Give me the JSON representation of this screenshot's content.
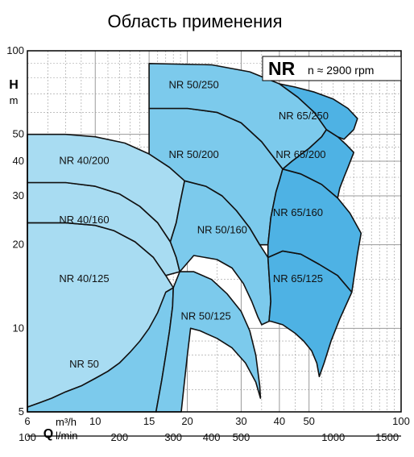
{
  "title": "Область применения",
  "chart_data": {
    "type": "area",
    "title": "Область применения",
    "legend_box": {
      "series": "NR",
      "speed": "n ≈ 2900 rpm"
    },
    "y_axis": {
      "letter": "H",
      "unit": "m",
      "scale": "log",
      "range": [
        5,
        100
      ],
      "ticks": [
        5,
        10,
        20,
        30,
        40,
        50,
        100
      ]
    },
    "x_axis_top": {
      "letter": "Q",
      "unit": "m³/h",
      "scale": "log",
      "range": [
        6,
        100
      ],
      "ticks": [
        6,
        10,
        15,
        20,
        30,
        40,
        50,
        100
      ]
    },
    "x_axis_bottom": {
      "unit": "l/min",
      "scale": "log",
      "ticks": [
        100,
        200,
        300,
        400,
        500,
        1000,
        1500
      ]
    },
    "grid": true,
    "colors": {
      "NR 40": "#a8dcf2",
      "NR 50": "#7ccaec",
      "NR 65": "#4eb2e4",
      "outline": "#111111",
      "highlight_label": "#d0202a"
    },
    "zones": [
      {
        "name": "NR 40/125",
        "family": "NR 40",
        "polygon": [
          [
            6,
            24
          ],
          [
            8,
            24
          ],
          [
            10,
            23.5
          ],
          [
            11.5,
            22.5
          ],
          [
            13.5,
            20.5
          ],
          [
            15.5,
            18
          ],
          [
            17,
            15.5
          ],
          [
            18,
            14
          ],
          [
            17,
            10.4
          ],
          [
            15.5,
            9
          ],
          [
            13,
            8.2
          ],
          [
            12,
            7.5
          ],
          [
            11,
            7
          ],
          [
            10,
            6.6
          ],
          [
            9,
            6.2
          ],
          [
            8,
            5.9
          ],
          [
            7.2,
            5.6
          ],
          [
            6.6,
            5.4
          ],
          [
            6,
            5.2
          ]
        ],
        "label_at": [
          9.2,
          15
        ]
      },
      {
        "name": "NR 50",
        "family": "NR 50",
        "highlight": true,
        "polygon": [
          [
            6,
            5.2
          ],
          [
            6.6,
            5.4
          ],
          [
            7.2,
            5.6
          ],
          [
            8,
            5.9
          ],
          [
            9,
            6.2
          ],
          [
            10,
            6.6
          ],
          [
            11,
            7
          ],
          [
            12,
            7.5
          ],
          [
            13,
            8.2
          ],
          [
            14,
            9
          ],
          [
            15,
            10
          ],
          [
            16,
            11.4
          ],
          [
            17,
            13.5
          ],
          [
            18,
            14
          ],
          [
            17.9,
            12
          ],
          [
            17.5,
            9.8
          ],
          [
            17,
            8
          ],
          [
            16.5,
            6.5
          ],
          [
            15.8,
            5
          ],
          [
            6,
            5
          ]
        ],
        "label_at": [
          9.2,
          7.4
        ]
      },
      {
        "name": "NR 40/160",
        "family": "NR 40",
        "polygon": [
          [
            6,
            33.5
          ],
          [
            8,
            33.5
          ],
          [
            10,
            32.5
          ],
          [
            12,
            30.5
          ],
          [
            14,
            27.5
          ],
          [
            16,
            24
          ],
          [
            17.6,
            20.5
          ],
          [
            18.4,
            18
          ],
          [
            18.9,
            16
          ],
          [
            17,
            15.5
          ],
          [
            15.5,
            18
          ],
          [
            13.5,
            20.5
          ],
          [
            11.5,
            22.5
          ],
          [
            10,
            23.5
          ],
          [
            8,
            24
          ],
          [
            6,
            24
          ]
        ],
        "label_at": [
          9.2,
          24.5
        ]
      },
      {
        "name": "NR 40/200",
        "family": "NR 40",
        "polygon": [
          [
            6,
            50
          ],
          [
            8,
            50
          ],
          [
            10,
            49
          ],
          [
            12.5,
            46.5
          ],
          [
            15,
            42.5
          ],
          [
            17.5,
            38
          ],
          [
            19.6,
            34
          ],
          [
            18.9,
            28
          ],
          [
            18.4,
            24
          ],
          [
            17.6,
            20.5
          ],
          [
            16,
            24
          ],
          [
            14,
            27.5
          ],
          [
            12,
            30.5
          ],
          [
            10,
            32.5
          ],
          [
            8,
            33.5
          ],
          [
            6,
            33.5
          ]
        ],
        "label_at": [
          9.2,
          40
        ]
      },
      {
        "name": "NR 50/125",
        "family": "NR 50",
        "polygon": [
          [
            18.9,
            16
          ],
          [
            21,
            16
          ],
          [
            24,
            15
          ],
          [
            27,
            13.3
          ],
          [
            30,
            11.5
          ],
          [
            32,
            9.8
          ],
          [
            33.5,
            8
          ],
          [
            34.5,
            6.2
          ],
          [
            34.7,
            5.6
          ],
          [
            33.5,
            6.4
          ],
          [
            31,
            7.5
          ],
          [
            28,
            8.5
          ],
          [
            25,
            9.2
          ],
          [
            22,
            9.8
          ],
          [
            20.5,
            10
          ],
          [
            20,
            8
          ],
          [
            19.6,
            6.5
          ],
          [
            19.1,
            5
          ],
          [
            15.8,
            5
          ],
          [
            16.5,
            6.5
          ],
          [
            17,
            8
          ],
          [
            17.5,
            9.8
          ],
          [
            17.9,
            12
          ],
          [
            18,
            14
          ]
        ],
        "label_at": [
          23,
          11
        ]
      },
      {
        "name": "NR 50/160",
        "family": "NR 50",
        "polygon": [
          [
            19.6,
            34
          ],
          [
            23,
            32.5
          ],
          [
            26,
            30
          ],
          [
            29,
            26.5
          ],
          [
            32,
            23
          ],
          [
            34.5,
            20
          ],
          [
            36.7,
            18
          ],
          [
            37.5,
            12.5
          ],
          [
            37,
            10.6
          ],
          [
            35,
            10.3
          ],
          [
            34,
            11
          ],
          [
            32.5,
            12.5
          ],
          [
            30.5,
            14.5
          ],
          [
            28,
            16.5
          ],
          [
            25,
            17.7
          ],
          [
            21,
            18.3
          ],
          [
            18.9,
            16
          ],
          [
            18.4,
            18
          ],
          [
            17.6,
            20.5
          ],
          [
            18.4,
            24
          ],
          [
            18.9,
            28
          ]
        ],
        "label_at": [
          26,
          22.5
        ]
      },
      {
        "name": "NR 50/200",
        "family": "NR 50",
        "polygon": [
          [
            15,
            62
          ],
          [
            20,
            62
          ],
          [
            25,
            60
          ],
          [
            30,
            55
          ],
          [
            35,
            47
          ],
          [
            41,
            37.5
          ],
          [
            40,
            34
          ],
          [
            39,
            31
          ],
          [
            37.5,
            25
          ],
          [
            36.7,
            20
          ],
          [
            34.5,
            20
          ],
          [
            32,
            23
          ],
          [
            29,
            26.5
          ],
          [
            26,
            30
          ],
          [
            23,
            32.5
          ],
          [
            19.6,
            34
          ],
          [
            17.5,
            38
          ],
          [
            15,
            42.5
          ]
        ],
        "label_at": [
          21,
          42
        ]
      },
      {
        "name": "NR 50/250",
        "family": "NR 50",
        "polygon": [
          [
            15,
            90
          ],
          [
            24,
            89
          ],
          [
            32,
            84
          ],
          [
            40,
            76
          ],
          [
            46,
            68
          ],
          [
            52,
            60
          ],
          [
            57,
            52
          ],
          [
            55,
            49
          ],
          [
            50,
            44.5
          ],
          [
            44,
            40
          ],
          [
            41,
            37.5
          ],
          [
            35,
            47
          ],
          [
            30,
            55
          ],
          [
            25,
            60
          ],
          [
            20,
            62
          ],
          [
            15,
            62
          ]
        ],
        "label_at": [
          21,
          75
        ]
      },
      {
        "name": "NR 65/125",
        "family": "NR 65",
        "polygon": [
          [
            36.7,
            18
          ],
          [
            41,
            19
          ],
          [
            47,
            18.5
          ],
          [
            54,
            17
          ],
          [
            62,
            15.5
          ],
          [
            69,
            13.5
          ],
          [
            63,
            10.8
          ],
          [
            59,
            9
          ],
          [
            56,
            7.5
          ],
          [
            54,
            6.7
          ],
          [
            53,
            7.5
          ],
          [
            51,
            8.3
          ],
          [
            48,
            9
          ],
          [
            45,
            9.6
          ],
          [
            41,
            10.3
          ],
          [
            37.5,
            10.6
          ],
          [
            37,
            10.6
          ],
          [
            37.5,
            12.5
          ]
        ],
        "label_at": [
          46,
          15
        ]
      },
      {
        "name": "NR 65/160",
        "family": "NR 65",
        "polygon": [
          [
            41,
            37.5
          ],
          [
            47,
            36
          ],
          [
            55,
            33
          ],
          [
            62,
            29.5
          ],
          [
            68,
            26
          ],
          [
            74,
            22
          ],
          [
            72,
            18.5
          ],
          [
            69,
            13.5
          ],
          [
            62,
            15.5
          ],
          [
            54,
            17
          ],
          [
            47,
            18.5
          ],
          [
            41,
            19
          ],
          [
            36.7,
            18
          ],
          [
            36.7,
            20
          ],
          [
            37.5,
            25
          ],
          [
            39,
            31
          ],
          [
            40,
            34
          ]
        ],
        "label_at": [
          46,
          26
        ]
      },
      {
        "name": "NR 65/200",
        "family": "NR 65",
        "polygon": [
          [
            57,
            52
          ],
          [
            62,
            49
          ],
          [
            66,
            46
          ],
          [
            70,
            43
          ],
          [
            67,
            38
          ],
          [
            65,
            35
          ],
          [
            63,
            32
          ],
          [
            62,
            29.5
          ],
          [
            55,
            33
          ],
          [
            47,
            36
          ],
          [
            41,
            37.5
          ],
          [
            44,
            40
          ],
          [
            50,
            44.5
          ],
          [
            55,
            49
          ]
        ],
        "label_at": [
          47,
          42
        ]
      },
      {
        "name": "NR 65/250",
        "family": "NR 65",
        "polygon": [
          [
            40,
            76
          ],
          [
            45,
            74
          ],
          [
            52,
            71
          ],
          [
            60,
            67
          ],
          [
            67,
            62
          ],
          [
            72,
            57
          ],
          [
            70,
            52
          ],
          [
            65,
            48
          ],
          [
            62,
            49
          ],
          [
            57,
            52
          ],
          [
            52,
            60
          ],
          [
            46,
            68
          ]
        ],
        "label_at": [
          48,
          58
        ]
      }
    ]
  }
}
